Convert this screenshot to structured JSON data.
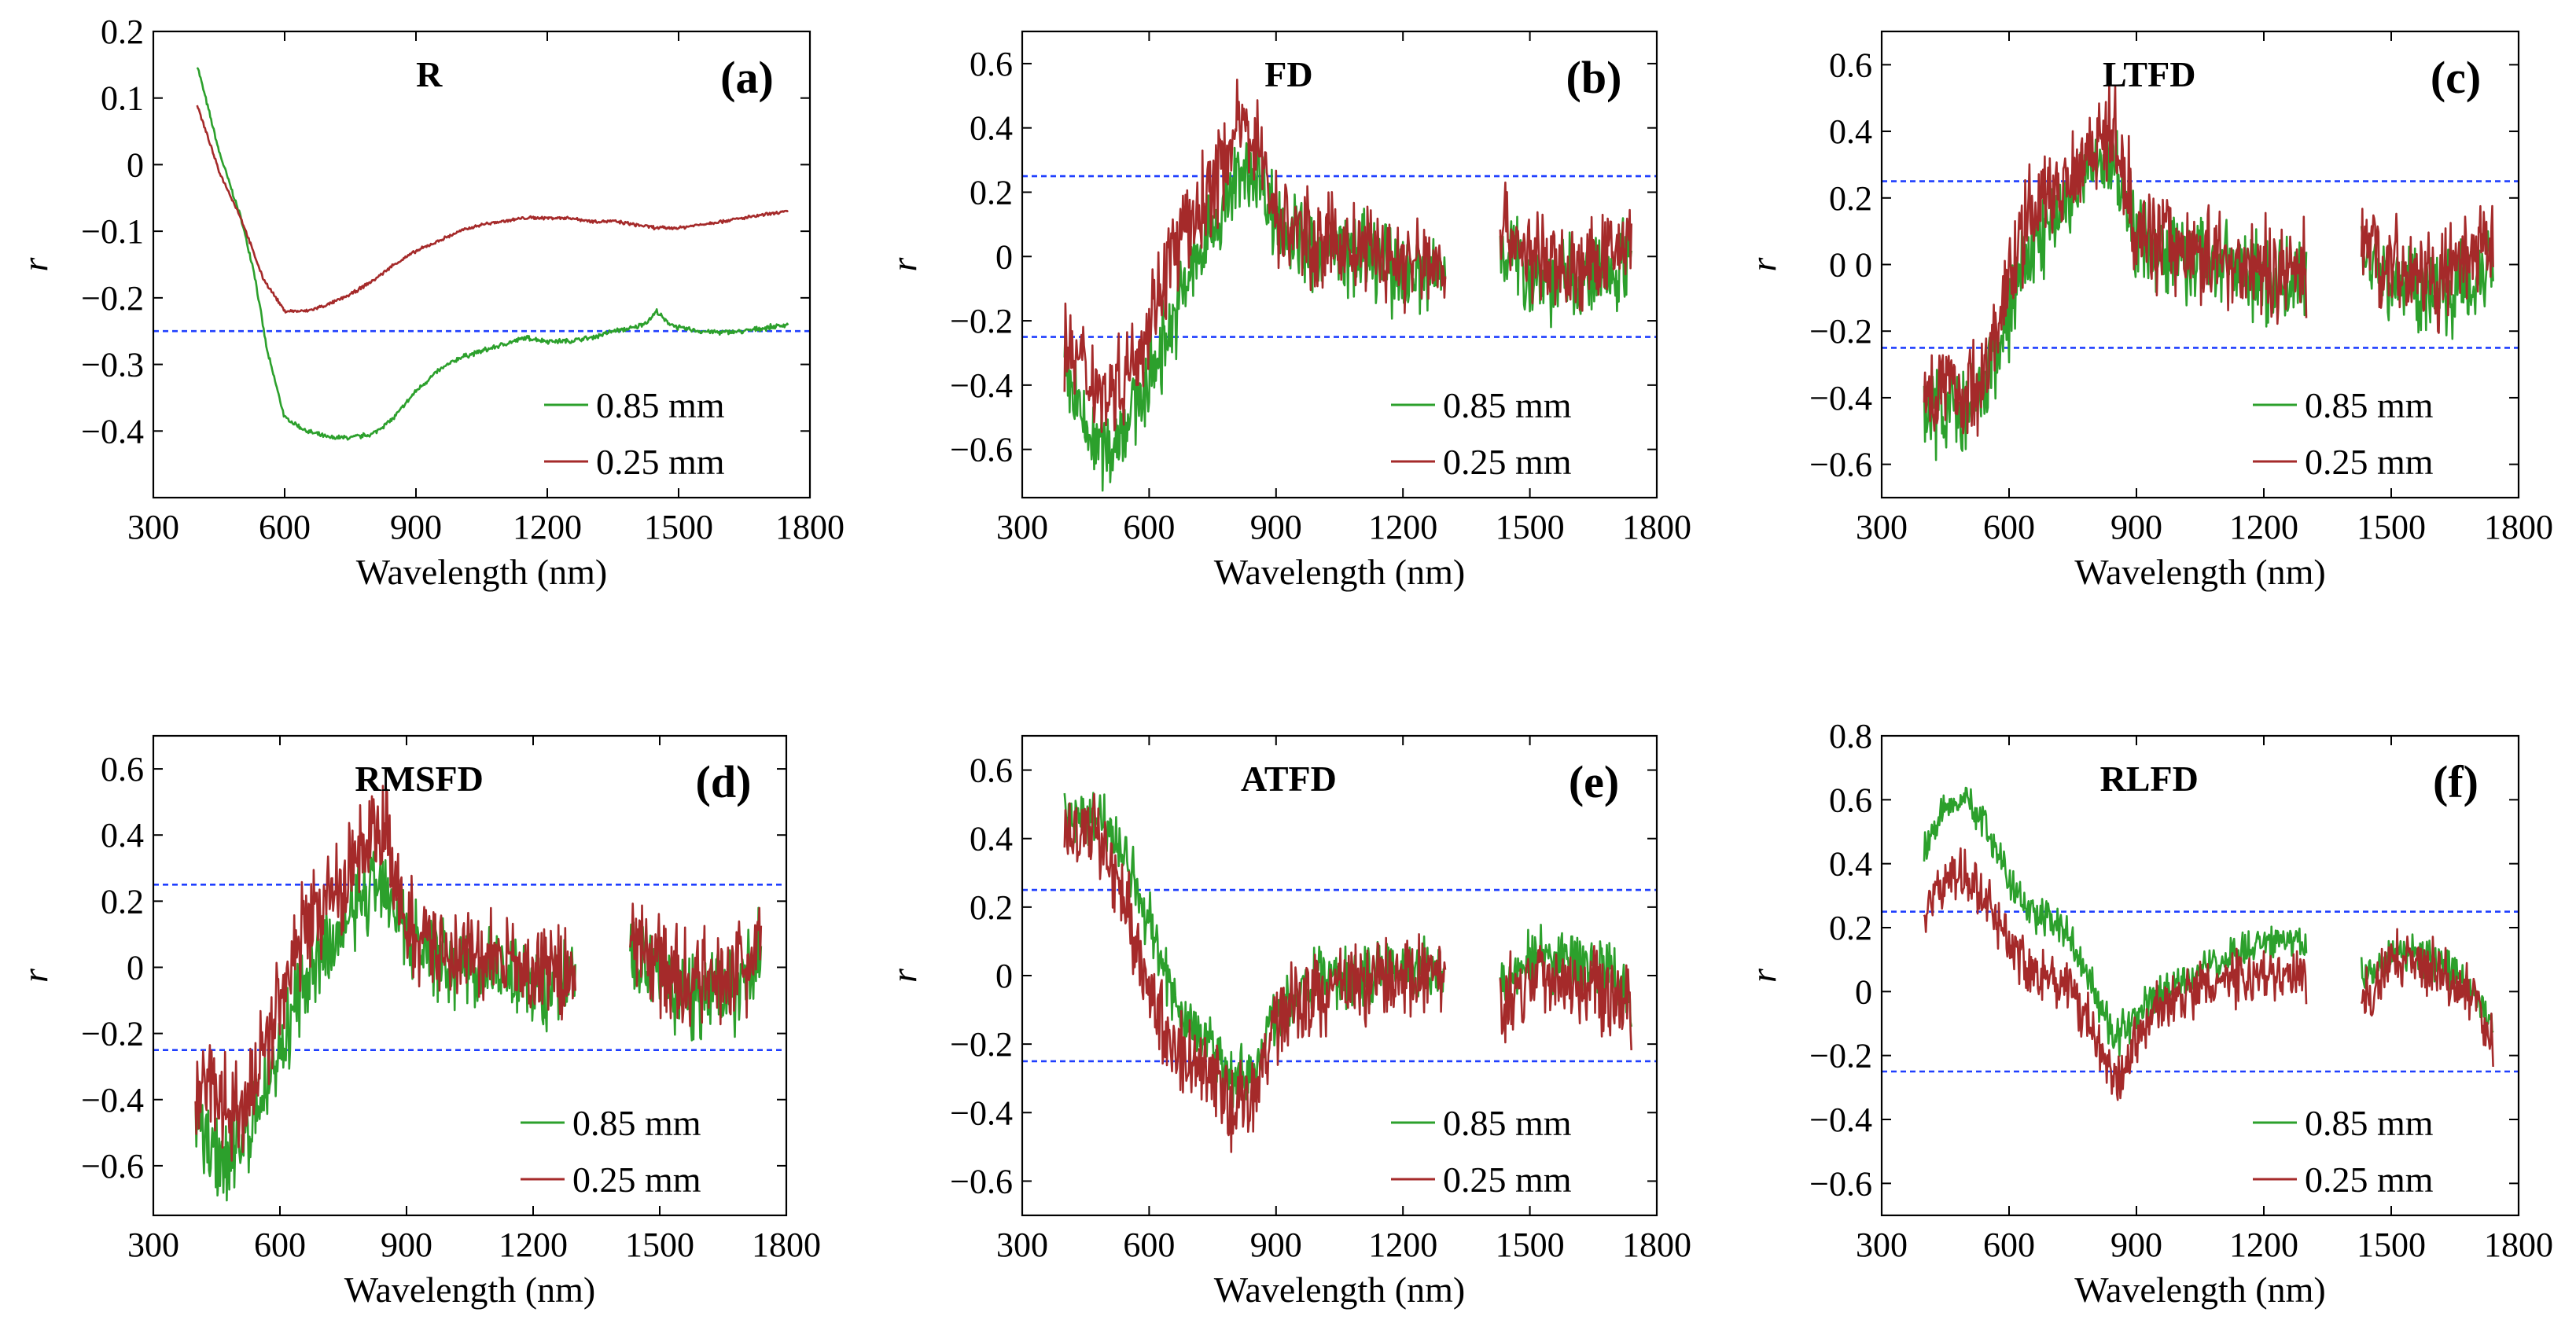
{
  "figure": {
    "legend_labels": [
      "0.85 mm",
      "0.25 mm"
    ],
    "xlabel": "Wavelength (nm)",
    "ylabel": "r",
    "threshold": 0.25,
    "colors": {
      "green": "#2ca02c",
      "red": "#a52a2a",
      "threshold": "#1f3fff",
      "axis": "#000000"
    }
  },
  "chart_data": [
    {
      "id": "a",
      "type": "line",
      "title": "R",
      "panel_label": "(a)",
      "xlabel": "Wavelength (nm)",
      "ylabel": "r",
      "xlim": [
        300,
        1800
      ],
      "ylim": [
        -0.5,
        0.2
      ],
      "xticks": [
        300,
        600,
        900,
        1200,
        1500,
        1800
      ],
      "yticks": [
        0.2,
        0.1,
        0,
        -0.1,
        -0.2,
        -0.3,
        -0.4
      ],
      "ytick_labels": [
        "0.2",
        "0.1",
        "0",
        "−0.1",
        "−0.2",
        "−0.3",
        "−0.4"
      ],
      "thresholds": [
        -0.25
      ],
      "legend": [
        "0.85 mm",
        "0.25 mm"
      ],
      "legend_position": "lower-right",
      "series": [
        {
          "name": "0.85 mm",
          "color": "#2ca02c",
          "noise": 0.003,
          "gaps": [],
          "x": [
            400,
            450,
            500,
            530,
            560,
            600,
            650,
            700,
            750,
            800,
            850,
            900,
            950,
            1000,
            1050,
            1100,
            1150,
            1200,
            1250,
            1300,
            1350,
            1400,
            1430,
            1450,
            1470,
            1500,
            1550,
            1600,
            1650,
            1700,
            1750
          ],
          "y": [
            0.15,
            0.02,
            -0.08,
            -0.16,
            -0.28,
            -0.38,
            -0.4,
            -0.41,
            -0.41,
            -0.405,
            -0.38,
            -0.34,
            -0.31,
            -0.29,
            -0.28,
            -0.27,
            -0.26,
            -0.265,
            -0.265,
            -0.26,
            -0.25,
            -0.245,
            -0.235,
            -0.22,
            -0.235,
            -0.245,
            -0.25,
            -0.252,
            -0.25,
            -0.245,
            -0.24
          ]
        },
        {
          "name": "0.25 mm",
          "color": "#a52a2a",
          "noise": 0.002,
          "gaps": [],
          "x": [
            400,
            450,
            500,
            550,
            600,
            650,
            700,
            750,
            800,
            850,
            900,
            950,
            1000,
            1050,
            1100,
            1150,
            1200,
            1250,
            1300,
            1350,
            1400,
            1450,
            1500,
            1550,
            1600,
            1650,
            1700,
            1750
          ],
          "y": [
            0.09,
            -0.01,
            -0.08,
            -0.17,
            -0.22,
            -0.22,
            -0.21,
            -0.195,
            -0.175,
            -0.15,
            -0.13,
            -0.115,
            -0.1,
            -0.09,
            -0.085,
            -0.08,
            -0.08,
            -0.08,
            -0.085,
            -0.085,
            -0.09,
            -0.095,
            -0.095,
            -0.09,
            -0.085,
            -0.08,
            -0.075,
            -0.07
          ]
        }
      ]
    },
    {
      "id": "b",
      "type": "line",
      "title": "FD",
      "panel_label": "(b)",
      "xlabel": "Wavelength (nm)",
      "ylabel": "r",
      "xlim": [
        300,
        1800
      ],
      "ylim": [
        -0.75,
        0.7
      ],
      "xticks": [
        300,
        600,
        900,
        1200,
        1500,
        1800
      ],
      "yticks": [
        0.6,
        0.4,
        0.2,
        0,
        -0.2,
        -0.4,
        -0.6
      ],
      "ytick_labels": [
        "0.6",
        "0.4",
        "0.2",
        "0",
        "−0.2",
        "−0.4",
        "−0.6"
      ],
      "thresholds": [
        0.25,
        -0.25
      ],
      "legend": [
        "0.85 mm",
        "0.25 mm"
      ],
      "legend_position": "lower-right",
      "series": [
        {
          "name": "0.85 mm",
          "color": "#2ca02c",
          "noise": 0.11,
          "gaps": [
            [
              1300,
              1430
            ]
          ],
          "x": [
            400,
            450,
            500,
            550,
            600,
            650,
            700,
            750,
            800,
            850,
            900,
            950,
            1000,
            1100,
            1200,
            1290,
            1430,
            1500,
            1600,
            1700,
            1740
          ],
          "y": [
            -0.35,
            -0.55,
            -0.6,
            -0.5,
            -0.38,
            -0.22,
            -0.05,
            0.08,
            0.22,
            0.28,
            0.12,
            0.05,
            0.02,
            0.0,
            -0.05,
            -0.05,
            0.05,
            -0.05,
            -0.08,
            -0.05,
            0.05
          ]
        },
        {
          "name": "0.25 mm",
          "color": "#a52a2a",
          "noise": 0.12,
          "gaps": [
            [
              1300,
              1430
            ]
          ],
          "x": [
            400,
            450,
            500,
            550,
            600,
            650,
            700,
            750,
            800,
            850,
            900,
            950,
            1000,
            1100,
            1200,
            1290,
            1430,
            1500,
            1600,
            1700,
            1740
          ],
          "y": [
            -0.28,
            -0.35,
            -0.42,
            -0.35,
            -0.2,
            0.0,
            0.1,
            0.22,
            0.38,
            0.4,
            0.12,
            0.08,
            0.05,
            0.02,
            -0.02,
            -0.02,
            0.1,
            0.0,
            -0.05,
            0.0,
            0.1
          ]
        }
      ]
    },
    {
      "id": "c",
      "type": "line",
      "title": "LTFD",
      "panel_label": "(c)",
      "xlabel": "Wavelength (nm)",
      "ylabel": "r",
      "xlim": [
        300,
        1800
      ],
      "ylim": [
        -0.7,
        0.7
      ],
      "xticks": [
        300,
        600,
        900,
        1200,
        1500,
        1800
      ],
      "yticks": [
        0.6,
        0.4,
        0.2,
        0,
        -0.2,
        -0.4,
        -0.6
      ],
      "ytick_labels": [
        "0.6",
        "0.4",
        "0.2",
        "0 0",
        "−0.2",
        "−0.4",
        "−0.6"
      ],
      "thresholds": [
        0.25,
        -0.25
      ],
      "legend": [
        "0.85 mm",
        "0.25 mm"
      ],
      "legend_position": "lower-right",
      "series": [
        {
          "name": "0.85 mm",
          "color": "#2ca02c",
          "noise": 0.11,
          "gaps": [
            [
              1300,
              1430
            ]
          ],
          "x": [
            400,
            450,
            500,
            550,
            600,
            650,
            700,
            750,
            800,
            850,
            900,
            950,
            1000,
            1100,
            1200,
            1290,
            1430,
            1500,
            1600,
            1700,
            1740
          ],
          "y": [
            -0.45,
            -0.42,
            -0.45,
            -0.35,
            -0.15,
            0.05,
            0.12,
            0.22,
            0.3,
            0.3,
            0.1,
            0.05,
            0.02,
            0.0,
            -0.05,
            -0.05,
            0.05,
            -0.05,
            -0.08,
            -0.05,
            0.05
          ]
        },
        {
          "name": "0.25 mm",
          "color": "#a52a2a",
          "noise": 0.12,
          "gaps": [
            [
              1300,
              1430
            ]
          ],
          "x": [
            400,
            450,
            500,
            550,
            600,
            650,
            700,
            750,
            800,
            850,
            900,
            950,
            1000,
            1100,
            1200,
            1290,
            1430,
            1500,
            1600,
            1700,
            1740
          ],
          "y": [
            -0.38,
            -0.36,
            -0.4,
            -0.3,
            -0.05,
            0.15,
            0.22,
            0.28,
            0.38,
            0.38,
            0.12,
            0.08,
            0.05,
            0.02,
            -0.02,
            -0.02,
            0.1,
            0.0,
            -0.05,
            0.0,
            0.1
          ]
        }
      ]
    },
    {
      "id": "d",
      "type": "line",
      "title": "RMSFD",
      "panel_label": "(d)",
      "xlabel": "Wavelength (nm)",
      "ylabel": "r",
      "xlim": [
        300,
        1800
      ],
      "ylim": [
        -0.75,
        0.7
      ],
      "xticks": [
        300,
        600,
        900,
        1200,
        1500,
        1800
      ],
      "yticks": [
        0.6,
        0.4,
        0.2,
        0,
        -0.2,
        -0.4,
        -0.6
      ],
      "ytick_labels": [
        "0.6",
        "0.4",
        "0.2",
        "0",
        "−0.2",
        "−0.4",
        "−0.6"
      ],
      "thresholds": [
        0.25,
        -0.25
      ],
      "legend": [
        "0.85 mm",
        "0.25 mm"
      ],
      "legend_position": "lower-right",
      "series": [
        {
          "name": "0.85 mm",
          "color": "#2ca02c",
          "noise": 0.11,
          "gaps": [
            [
              1300,
              1430
            ]
          ],
          "x": [
            400,
            450,
            500,
            550,
            600,
            650,
            700,
            750,
            800,
            850,
            900,
            950,
            1000,
            1100,
            1200,
            1290,
            1430,
            1500,
            1600,
            1700,
            1740
          ],
          "y": [
            -0.45,
            -0.58,
            -0.55,
            -0.42,
            -0.25,
            -0.08,
            0.02,
            0.12,
            0.22,
            0.28,
            0.1,
            0.05,
            0.02,
            0.0,
            -0.05,
            -0.05,
            0.05,
            -0.05,
            -0.08,
            -0.05,
            0.05
          ]
        },
        {
          "name": "0.25 mm",
          "color": "#a52a2a",
          "noise": 0.12,
          "gaps": [
            [
              1300,
              1430
            ]
          ],
          "x": [
            400,
            450,
            500,
            550,
            600,
            650,
            700,
            750,
            800,
            850,
            900,
            950,
            1000,
            1100,
            1200,
            1290,
            1430,
            1500,
            1600,
            1700,
            1740
          ],
          "y": [
            -0.35,
            -0.42,
            -0.44,
            -0.3,
            -0.08,
            0.1,
            0.18,
            0.26,
            0.38,
            0.4,
            0.12,
            0.08,
            0.05,
            0.02,
            -0.02,
            -0.02,
            0.1,
            0.0,
            -0.05,
            0.0,
            0.1
          ]
        }
      ]
    },
    {
      "id": "e",
      "type": "line",
      "title": "ATFD",
      "panel_label": "(e)",
      "xlabel": "Wavelength (nm)",
      "ylabel": "r",
      "xlim": [
        300,
        1800
      ],
      "ylim": [
        -0.7,
        0.7
      ],
      "xticks": [
        300,
        600,
        900,
        1200,
        1500,
        1800
      ],
      "yticks": [
        0.6,
        0.4,
        0.2,
        0,
        -0.2,
        -0.4,
        -0.6
      ],
      "ytick_labels": [
        "0.6",
        "0.4",
        "0.2",
        "0",
        "−0.2",
        "−0.4",
        "−0.6"
      ],
      "thresholds": [
        0.25,
        -0.25
      ],
      "legend": [
        "0.85 mm",
        "0.25 mm"
      ],
      "legend_position": "lower-right",
      "series": [
        {
          "name": "0.85 mm",
          "color": "#2ca02c",
          "noise": 0.08,
          "gaps": [
            [
              1300,
              1430
            ]
          ],
          "x": [
            400,
            450,
            500,
            550,
            600,
            650,
            700,
            750,
            800,
            850,
            900,
            950,
            1000,
            1100,
            1200,
            1290,
            1430,
            1500,
            1600,
            1700,
            1740
          ],
          "y": [
            0.45,
            0.46,
            0.44,
            0.35,
            0.15,
            -0.05,
            -0.15,
            -0.2,
            -0.3,
            -0.28,
            -0.1,
            -0.05,
            -0.02,
            0.0,
            0.03,
            0.03,
            -0.05,
            0.05,
            0.05,
            0.0,
            -0.1
          ]
        },
        {
          "name": "0.25 mm",
          "color": "#a52a2a",
          "noise": 0.1,
          "gaps": [
            [
              1300,
              1430
            ]
          ],
          "x": [
            400,
            450,
            500,
            550,
            600,
            650,
            700,
            750,
            800,
            850,
            900,
            950,
            1000,
            1100,
            1200,
            1290,
            1430,
            1500,
            1600,
            1700,
            1740
          ],
          "y": [
            0.4,
            0.42,
            0.38,
            0.2,
            -0.05,
            -0.2,
            -0.25,
            -0.3,
            -0.4,
            -0.35,
            -0.12,
            -0.08,
            -0.05,
            -0.02,
            0.0,
            0.0,
            -0.1,
            0.0,
            0.0,
            -0.05,
            -0.12
          ]
        }
      ]
    },
    {
      "id": "f",
      "type": "line",
      "title": "RLFD",
      "panel_label": "(f)",
      "xlabel": "Wavelength (nm)",
      "ylabel": "r",
      "xlim": [
        300,
        1800
      ],
      "ylim": [
        -0.7,
        0.8
      ],
      "xticks": [
        300,
        600,
        900,
        1200,
        1500,
        1800
      ],
      "yticks": [
        0.8,
        0.6,
        0.4,
        0.2,
        0,
        -0.2,
        -0.4,
        -0.6
      ],
      "ytick_labels": [
        "0.8",
        "0.6",
        "0.4",
        "0.2",
        "0",
        "−0.2",
        "−0.4",
        "−0.6"
      ],
      "thresholds": [
        0.25,
        -0.25
      ],
      "legend": [
        "0.85 mm",
        "0.25 mm"
      ],
      "legend_position": "lower-right",
      "series": [
        {
          "name": "0.85 mm",
          "color": "#2ca02c",
          "noise": 0.05,
          "gaps": [
            [
              1300,
              1430
            ]
          ],
          "x": [
            400,
            450,
            500,
            550,
            600,
            650,
            700,
            750,
            800,
            850,
            900,
            950,
            1000,
            1100,
            1200,
            1290,
            1430,
            1500,
            1600,
            1700,
            1740
          ],
          "y": [
            0.45,
            0.58,
            0.6,
            0.5,
            0.35,
            0.25,
            0.22,
            0.15,
            0.0,
            -0.15,
            -0.08,
            -0.02,
            0.02,
            0.1,
            0.15,
            0.15,
            0.05,
            0.12,
            0.1,
            0.0,
            -0.12
          ]
        },
        {
          "name": "0.25 mm",
          "color": "#a52a2a",
          "noise": 0.07,
          "gaps": [
            [
              1300,
              1430
            ]
          ],
          "x": [
            400,
            450,
            500,
            550,
            600,
            650,
            700,
            750,
            800,
            850,
            900,
            950,
            1000,
            1100,
            1200,
            1290,
            1430,
            1500,
            1600,
            1700,
            1740
          ],
          "y": [
            0.25,
            0.35,
            0.37,
            0.3,
            0.15,
            0.08,
            0.05,
            0.0,
            -0.15,
            -0.3,
            -0.15,
            -0.05,
            -0.02,
            0.03,
            0.05,
            0.05,
            -0.05,
            0.1,
            0.08,
            -0.02,
            -0.15
          ]
        }
      ]
    }
  ]
}
